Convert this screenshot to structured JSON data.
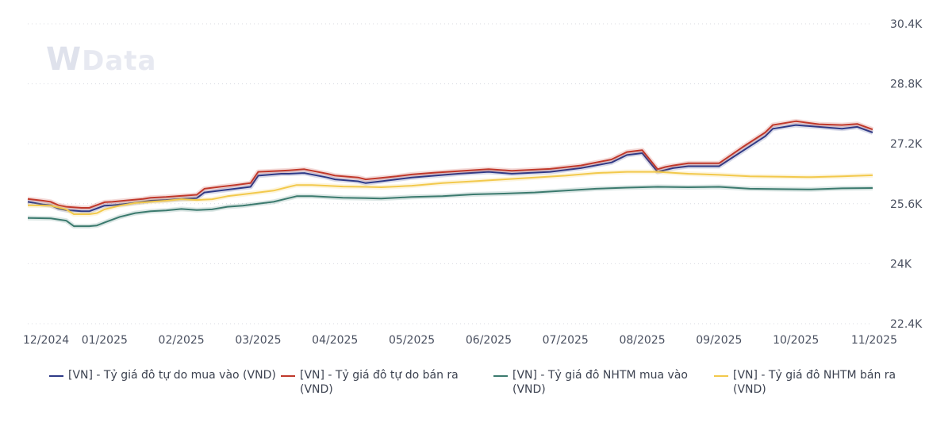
{
  "watermark": {
    "brand_w": "W",
    "brand_rest": "Data"
  },
  "chart_data": {
    "type": "line",
    "title": "",
    "ylim": [
      22400,
      30400
    ],
    "y_ticks": [
      22400,
      24000,
      25600,
      27200,
      28800,
      30400
    ],
    "y_tick_labels": [
      "22.4K",
      "24K",
      "25.6K",
      "27.2K",
      "28.8K",
      "30.4K"
    ],
    "x_tick_labels": [
      "12/2024",
      "01/2025",
      "02/2025",
      "03/2025",
      "04/2025",
      "05/2025",
      "06/2025",
      "07/2025",
      "08/2025",
      "09/2025",
      "10/2025",
      "11/2025"
    ],
    "x_tick_index": [
      0,
      1,
      2,
      3,
      4,
      5,
      6,
      7,
      8,
      9,
      10,
      11
    ],
    "grid": true,
    "legend_position": "bottom",
    "series": [
      {
        "name": "[VN] - Tỷ giá đô tự do mua vào (VND)",
        "color": "#2e3a87",
        "x": [
          0.0,
          0.2,
          0.3,
          0.4,
          0.5,
          0.7,
          0.8,
          1.0,
          1.1,
          1.3,
          1.5,
          1.6,
          1.8,
          2.0,
          2.2,
          2.3,
          2.5,
          2.7,
          2.9,
          3.0,
          3.3,
          3.4,
          3.6,
          3.9,
          4.0,
          4.3,
          4.4,
          4.6,
          4.8,
          5.0,
          5.3,
          5.6,
          6.0,
          6.3,
          6.8,
          7.2,
          7.6,
          7.8,
          8.0,
          8.2,
          8.3,
          8.4,
          8.6,
          9.0,
          9.3,
          9.6,
          9.7,
          10.0,
          10.3,
          10.6,
          10.8,
          11.0
        ],
        "values": [
          25650,
          25580,
          25560,
          25470,
          25430,
          25400,
          25400,
          25550,
          25560,
          25600,
          25650,
          25680,
          25700,
          25730,
          25750,
          25900,
          25950,
          26000,
          26050,
          26350,
          26400,
          26400,
          26420,
          26300,
          26250,
          26200,
          26150,
          26200,
          26250,
          26300,
          26350,
          26400,
          26450,
          26400,
          26450,
          26550,
          26700,
          26900,
          26950,
          26450,
          26500,
          26550,
          26600,
          26600,
          27000,
          27400,
          27600,
          27700,
          27650,
          27600,
          27650,
          27500
        ]
      },
      {
        "name": "[VN] - Tỷ giá đô tự do bán ra (VND)",
        "color": "#c0392b",
        "x": [
          0.0,
          0.2,
          0.3,
          0.4,
          0.5,
          0.7,
          0.8,
          1.0,
          1.1,
          1.3,
          1.5,
          1.6,
          1.8,
          2.0,
          2.2,
          2.3,
          2.5,
          2.7,
          2.9,
          3.0,
          3.3,
          3.4,
          3.6,
          3.9,
          4.0,
          4.3,
          4.4,
          4.6,
          4.8,
          5.0,
          5.3,
          5.6,
          6.0,
          6.3,
          6.8,
          7.2,
          7.6,
          7.8,
          8.0,
          8.2,
          8.3,
          8.4,
          8.6,
          9.0,
          9.3,
          9.6,
          9.7,
          10.0,
          10.3,
          10.6,
          10.8,
          11.0
        ],
        "values": [
          25730,
          25680,
          25650,
          25560,
          25520,
          25490,
          25490,
          25640,
          25650,
          25690,
          25730,
          25760,
          25780,
          25810,
          25840,
          26000,
          26050,
          26100,
          26150,
          26450,
          26480,
          26490,
          26520,
          26400,
          26350,
          26300,
          26250,
          26290,
          26330,
          26380,
          26430,
          26470,
          26520,
          26480,
          26530,
          26620,
          26780,
          26980,
          27030,
          26520,
          26580,
          26620,
          26680,
          26680,
          27100,
          27500,
          27700,
          27800,
          27720,
          27700,
          27730,
          27580
        ]
      },
      {
        "name": "[VN] - Tỷ giá đô NHTM mua vào (VND)",
        "color": "#3b7a6e",
        "x": [
          0.0,
          0.3,
          0.5,
          0.6,
          0.8,
          0.9,
          1.0,
          1.2,
          1.4,
          1.6,
          1.8,
          2.0,
          2.2,
          2.4,
          2.6,
          2.8,
          3.0,
          3.2,
          3.4,
          3.5,
          3.7,
          3.9,
          4.1,
          4.4,
          4.6,
          4.8,
          5.0,
          5.4,
          5.8,
          6.2,
          6.6,
          7.0,
          7.4,
          7.8,
          8.2,
          8.6,
          9.0,
          9.4,
          9.8,
          10.2,
          10.6,
          11.0
        ],
        "values": [
          25220,
          25210,
          25150,
          25000,
          25000,
          25020,
          25100,
          25250,
          25350,
          25400,
          25420,
          25460,
          25430,
          25450,
          25520,
          25550,
          25600,
          25650,
          25750,
          25800,
          25800,
          25780,
          25760,
          25750,
          25740,
          25760,
          25780,
          25800,
          25850,
          25870,
          25900,
          25950,
          26000,
          26030,
          26050,
          26040,
          26050,
          26000,
          25990,
          25980,
          26010,
          26020
        ]
      },
      {
        "name": "[VN] - Tỷ giá đô NHTM bán ra (VND)",
        "color": "#f2c94c",
        "x": [
          0.0,
          0.3,
          0.5,
          0.6,
          0.8,
          0.9,
          1.0,
          1.2,
          1.4,
          1.6,
          1.8,
          2.0,
          2.2,
          2.4,
          2.6,
          2.8,
          3.0,
          3.2,
          3.4,
          3.5,
          3.7,
          3.9,
          4.1,
          4.4,
          4.6,
          4.8,
          5.0,
          5.4,
          5.8,
          6.2,
          6.6,
          7.0,
          7.4,
          7.8,
          8.2,
          8.6,
          9.0,
          9.4,
          9.8,
          10.2,
          10.6,
          11.0
        ],
        "values": [
          25560,
          25550,
          25450,
          25320,
          25320,
          25350,
          25450,
          25550,
          25620,
          25650,
          25680,
          25720,
          25700,
          25720,
          25800,
          25850,
          25900,
          25950,
          26050,
          26100,
          26100,
          26080,
          26060,
          26050,
          26040,
          26060,
          26080,
          26150,
          26200,
          26250,
          26300,
          26350,
          26420,
          26450,
          26450,
          26400,
          26370,
          26330,
          26320,
          26310,
          26330,
          26360
        ]
      }
    ]
  }
}
